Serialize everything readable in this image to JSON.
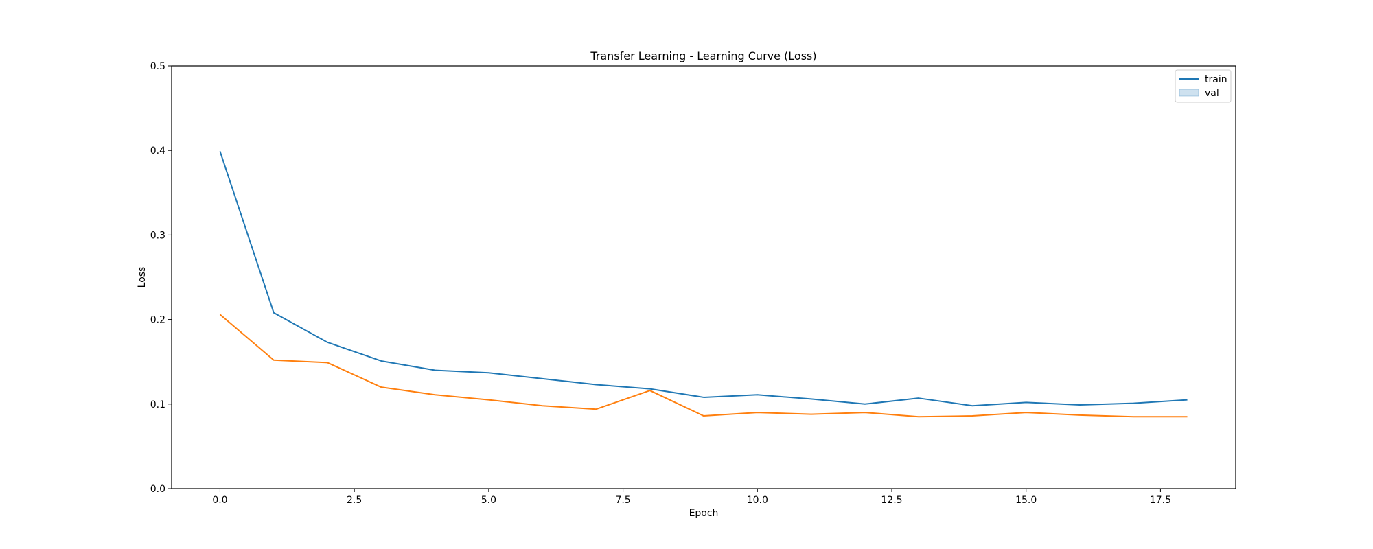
{
  "chart_data": {
    "type": "line",
    "title": "Transfer Learning - Learning Curve (Loss)",
    "xlabel": "Epoch",
    "ylabel": "Loss",
    "xlim": [
      -0.9,
      18.9
    ],
    "ylim": [
      0,
      0.5
    ],
    "x_ticks": [
      0,
      2.5,
      5,
      7.5,
      10,
      12.5,
      15,
      17.5
    ],
    "x_tick_labels": [
      "0.0",
      "2.5",
      "5.0",
      "7.5",
      "10.0",
      "12.5",
      "15.0",
      "17.5"
    ],
    "y_ticks": [
      0,
      0.1,
      0.2,
      0.3,
      0.4,
      0.5
    ],
    "y_tick_labels": [
      "0.0",
      "0.1",
      "0.2",
      "0.3",
      "0.4",
      "0.5"
    ],
    "grid": false,
    "legend_position": "top-right",
    "x": [
      0,
      1,
      2,
      3,
      4,
      5,
      6,
      7,
      8,
      9,
      10,
      11,
      12,
      13,
      14,
      15,
      16,
      17,
      18
    ],
    "series": [
      {
        "name": "train",
        "color": "#1f77b4",
        "legend_marker": "line",
        "values": [
          0.399,
          0.208,
          0.173,
          0.151,
          0.14,
          0.137,
          0.13,
          0.123,
          0.118,
          0.108,
          0.111,
          0.106,
          0.1,
          0.107,
          0.098,
          0.102,
          0.099,
          0.101,
          0.105
        ]
      },
      {
        "name": "val",
        "color": "#ff7f0e",
        "legend_marker": "patch",
        "legend_color": "#1f77b4",
        "values": [
          0.206,
          0.152,
          0.149,
          0.12,
          0.111,
          0.105,
          0.098,
          0.094,
          0.116,
          0.086,
          0.09,
          0.088,
          0.09,
          0.085,
          0.086,
          0.09,
          0.087,
          0.085,
          0.085
        ]
      }
    ]
  }
}
